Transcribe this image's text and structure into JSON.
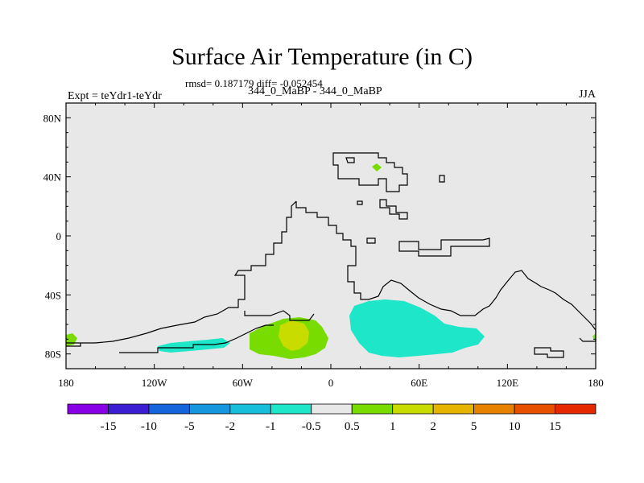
{
  "title": "Surface Air Temperature (in C)",
  "stats": "rmsd= 0.187179 diff= -0.052454",
  "left_label": "Expt = teYdr1-teYdr",
  "center_label": "344_0_MaBP - 344_0_MaBP",
  "season": "JJA",
  "lat_ticks": [
    {
      "label": "80N",
      "value": 80
    },
    {
      "label": "40N",
      "value": 40
    },
    {
      "label": "0",
      "value": 0
    },
    {
      "label": "40S",
      "value": -40
    },
    {
      "label": "80S",
      "value": -80
    }
  ],
  "lon_ticks": [
    {
      "label": "180",
      "value": -180
    },
    {
      "label": "120W",
      "value": -120
    },
    {
      "label": "60W",
      "value": -60
    },
    {
      "label": "0",
      "value": 0
    },
    {
      "label": "60E",
      "value": 60
    },
    {
      "label": "120E",
      "value": 120
    },
    {
      "label": "180",
      "value": 180
    }
  ],
  "colorbar": {
    "colors": [
      "#8a00e6",
      "#3c1ed2",
      "#1464dc",
      "#1696dc",
      "#16bedc",
      "#1ee6c8",
      "#e8e8e8",
      "#78dc00",
      "#c8dc00",
      "#e6b400",
      "#e68200",
      "#e65000",
      "#e62800"
    ],
    "labels": [
      "-15",
      "-10",
      "-5",
      "-2",
      "-1",
      "-0.5",
      "0.5",
      "1",
      "2",
      "5",
      "10",
      "15"
    ]
  },
  "background_color": "#e8e8e8"
}
